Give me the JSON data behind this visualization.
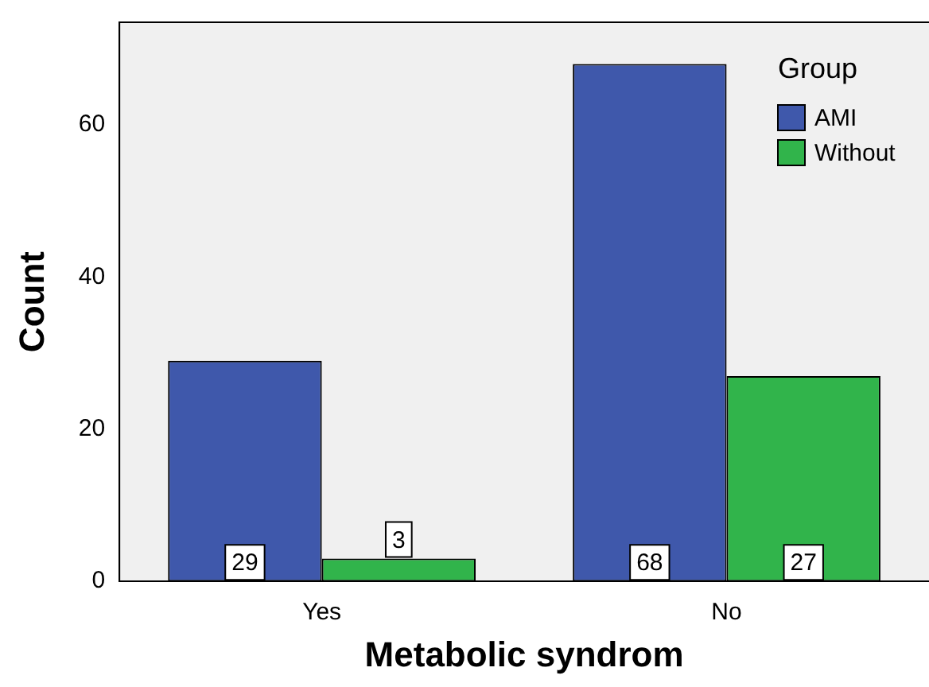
{
  "chart_data": {
    "type": "bar",
    "xlabel": "Metabolic syndrom",
    "ylabel": "Count",
    "legend_title": "Group",
    "categories": [
      "Yes",
      "No"
    ],
    "series": [
      {
        "name": "AMI",
        "color": "#3f58ab",
        "values": [
          29,
          68
        ]
      },
      {
        "name": "Without",
        "color": "#31b44b",
        "values": [
          3,
          27
        ]
      }
    ],
    "ylim": [
      0,
      73.5
    ],
    "yticks": [
      0,
      20,
      40,
      60
    ],
    "grid": false,
    "legend": "top right",
    "data_labels": true
  }
}
